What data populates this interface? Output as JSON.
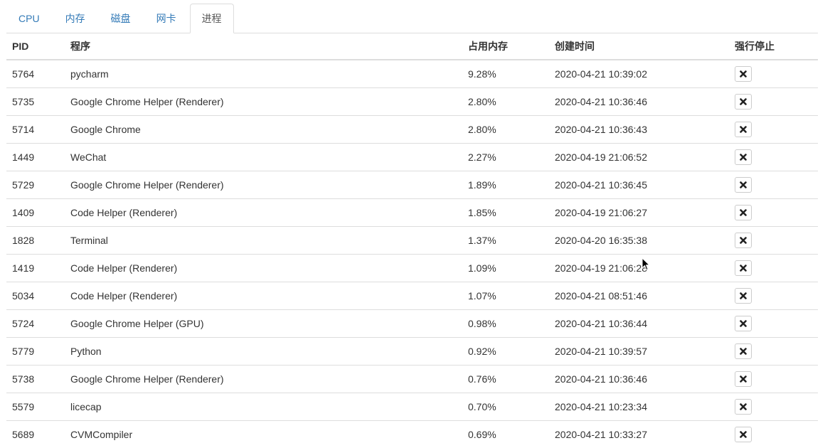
{
  "tabs": [
    {
      "label": "CPU",
      "active": false
    },
    {
      "label": "内存",
      "active": false
    },
    {
      "label": "磁盘",
      "active": false
    },
    {
      "label": "网卡",
      "active": false
    },
    {
      "label": "进程",
      "active": true
    }
  ],
  "table": {
    "headers": {
      "pid": "PID",
      "program": "程序",
      "memory": "占用内存",
      "created": "创建时间",
      "kill": "强行停止"
    },
    "rows": [
      {
        "pid": "5764",
        "program": "pycharm",
        "memory": "9.28%",
        "created": "2020-04-21 10:39:02"
      },
      {
        "pid": "5735",
        "program": "Google Chrome Helper (Renderer)",
        "memory": "2.80%",
        "created": "2020-04-21 10:36:46"
      },
      {
        "pid": "5714",
        "program": "Google Chrome",
        "memory": "2.80%",
        "created": "2020-04-21 10:36:43"
      },
      {
        "pid": "1449",
        "program": "WeChat",
        "memory": "2.27%",
        "created": "2020-04-19 21:06:52"
      },
      {
        "pid": "5729",
        "program": "Google Chrome Helper (Renderer)",
        "memory": "1.89%",
        "created": "2020-04-21 10:36:45"
      },
      {
        "pid": "1409",
        "program": "Code Helper (Renderer)",
        "memory": "1.85%",
        "created": "2020-04-19 21:06:27"
      },
      {
        "pid": "1828",
        "program": "Terminal",
        "memory": "1.37%",
        "created": "2020-04-20 16:35:38"
      },
      {
        "pid": "1419",
        "program": "Code Helper (Renderer)",
        "memory": "1.09%",
        "created": "2020-04-19 21:06:28"
      },
      {
        "pid": "5034",
        "program": "Code Helper (Renderer)",
        "memory": "1.07%",
        "created": "2020-04-21 08:51:46"
      },
      {
        "pid": "5724",
        "program": "Google Chrome Helper (GPU)",
        "memory": "0.98%",
        "created": "2020-04-21 10:36:44"
      },
      {
        "pid": "5779",
        "program": "Python",
        "memory": "0.92%",
        "created": "2020-04-21 10:39:57"
      },
      {
        "pid": "5738",
        "program": "Google Chrome Helper (Renderer)",
        "memory": "0.76%",
        "created": "2020-04-21 10:36:46"
      },
      {
        "pid": "5579",
        "program": "licecap",
        "memory": "0.70%",
        "created": "2020-04-21 10:23:34"
      },
      {
        "pid": "5689",
        "program": "CVMCompiler",
        "memory": "0.69%",
        "created": "2020-04-21 10:33:27"
      }
    ]
  },
  "icons": {
    "kill": "close-icon",
    "cursor": "mouse-pointer-icon"
  },
  "colors": {
    "link": "#337ab7",
    "active_tab_text": "#555555",
    "border": "#dddddd",
    "text": "#333333"
  }
}
